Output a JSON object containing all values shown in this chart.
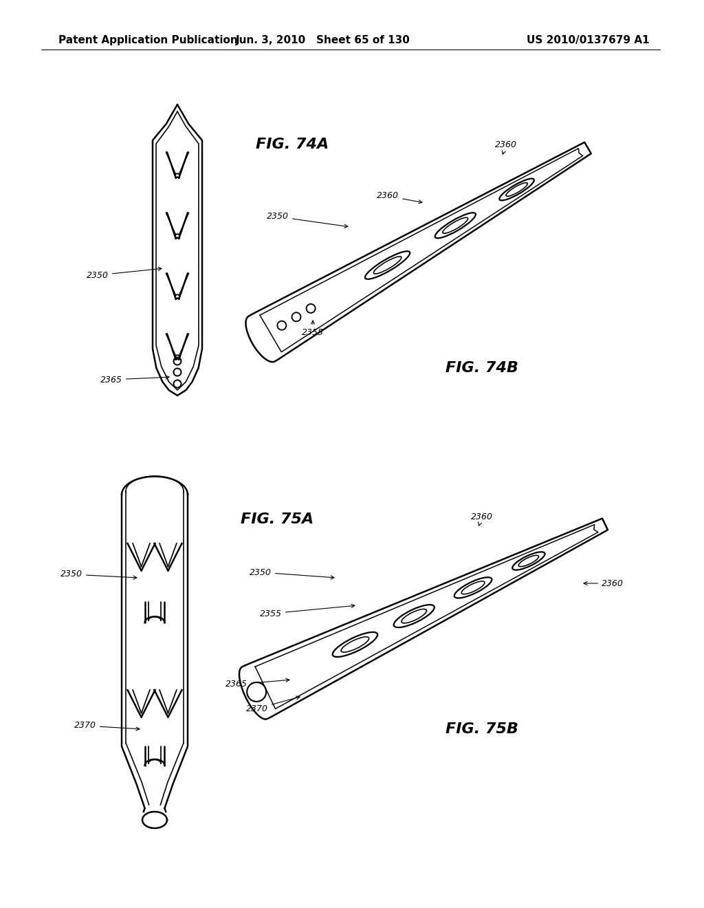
{
  "background_color": "#ffffff",
  "header_left": "Patent Application Publication",
  "header_center": "Jun. 3, 2010   Sheet 65 of 130",
  "header_right": "US 2010/0137679 A1",
  "header_fontsize": 11,
  "fig74a_label": "FIG. 74A",
  "fig74b_label": "FIG. 74B",
  "fig75a_label": "FIG. 75A",
  "fig75b_label": "FIG. 75B",
  "label_2350_74a": "2350",
  "label_2365_74a": "2365",
  "label_2350_74b": "2350",
  "label_2360_74b_top": "2360",
  "label_2360_74b_mid": "2360",
  "label_2355_74b": "2355",
  "label_2350_75a": "2350",
  "label_2370_75a": "2370",
  "label_2350_75b": "2350",
  "label_2360_75b_top": "2360",
  "label_2360_75b_right": "2360",
  "label_2355_75b": "2355",
  "label_2365_75b": "2365",
  "label_2370_75b": "2370",
  "line_color": "#000000",
  "line_width": 1.8,
  "annotation_fontsize": 9,
  "fig_label_fontsize": 16
}
